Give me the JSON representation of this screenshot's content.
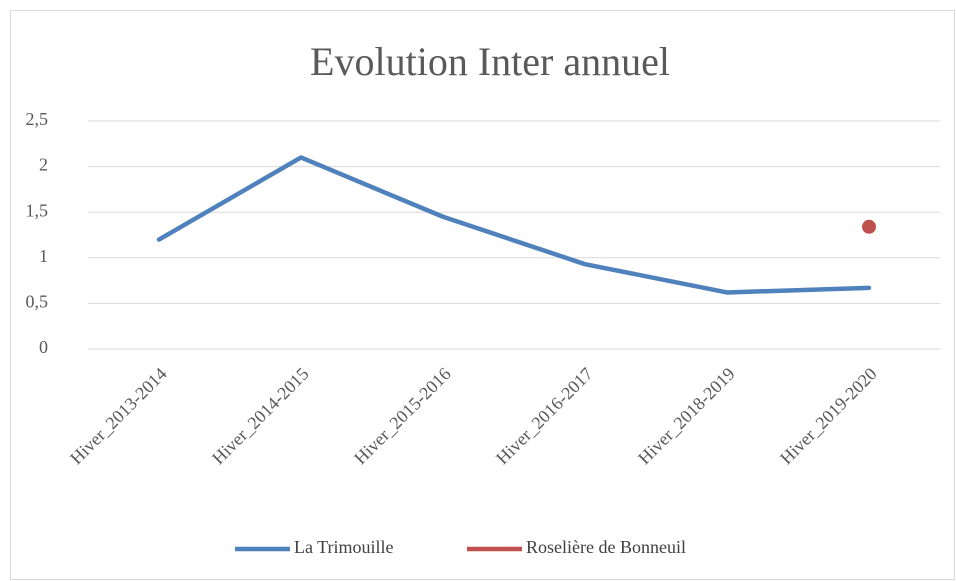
{
  "chart_data": {
    "type": "line",
    "title": "Evolution Inter annuel",
    "categories": [
      "Hiver_2013-2014",
      "Hiver_2014-2015",
      "Hiver_2015-2016",
      "Hiver_2016-2017",
      "Hiver_2018-2019",
      "Hiver_2019-2020"
    ],
    "series": [
      {
        "name": "La Trimouille",
        "color": "#4f81bd",
        "values": [
          1.2,
          2.1,
          1.45,
          0.93,
          0.62,
          0.67
        ]
      },
      {
        "name": "Roselière de Bonneuil",
        "color": "#c0504d",
        "values": [
          null,
          null,
          null,
          null,
          null,
          1.34
        ]
      }
    ],
    "ylim": [
      0,
      2.5
    ],
    "yticks": [
      0,
      {
        "value": 0.5,
        "label": "0,5"
      },
      1,
      {
        "value": 1.5,
        "label": "1,5"
      },
      2,
      {
        "value": 2.5,
        "label": "2,5"
      }
    ],
    "grid": true,
    "legend": "bottom"
  }
}
